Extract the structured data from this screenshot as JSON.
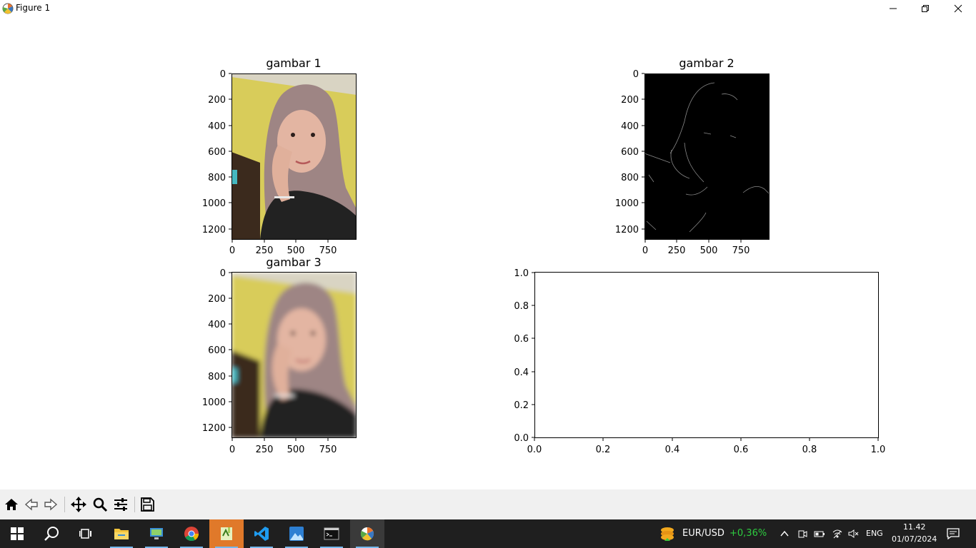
{
  "window": {
    "title": "Figure 1"
  },
  "subplots": [
    {
      "title": "gambar 1",
      "image": "photo-selfie",
      "yticks": [
        "0",
        "200",
        "400",
        "600",
        "800",
        "1000",
        "1200"
      ],
      "xticks": [
        "0",
        "250",
        "500",
        "750"
      ]
    },
    {
      "title": "gambar 2",
      "image": "edge-map",
      "yticks": [
        "0",
        "200",
        "400",
        "600",
        "800",
        "1000",
        "1200"
      ],
      "xticks": [
        "0",
        "250",
        "500",
        "750"
      ]
    },
    {
      "title": "gambar 3",
      "image": "photo-blurred",
      "yticks": [
        "0",
        "200",
        "400",
        "600",
        "800",
        "1000",
        "1200"
      ],
      "xticks": [
        "0",
        "250",
        "500",
        "750"
      ]
    },
    {
      "title": "",
      "image": "",
      "yticks": [
        "0.0",
        "0.2",
        "0.4",
        "0.6",
        "0.8",
        "1.0"
      ],
      "xticks": [
        "0.0",
        "0.2",
        "0.4",
        "0.6",
        "0.8",
        "1.0"
      ]
    }
  ],
  "toolbar": [
    "home-icon",
    "back-icon",
    "forward-icon",
    "pan-icon",
    "zoom-icon",
    "configure-subplots-icon",
    "save-icon"
  ],
  "taskbar": {
    "apps": [
      "start-icon",
      "search-icon",
      "task-view-icon",
      "file-explorer-icon",
      "remote-desktop-icon",
      "chrome-icon",
      "notepad-plus-plus-icon",
      "vscode-icon",
      "photos-icon",
      "terminal-icon",
      "python-figure-icon"
    ],
    "ticker": {
      "symbol": "EUR/USD",
      "change": "+0,36%",
      "change_color": "#2ecc40"
    },
    "language": "ENG",
    "time": "11.42",
    "date": "01/07/2024"
  }
}
